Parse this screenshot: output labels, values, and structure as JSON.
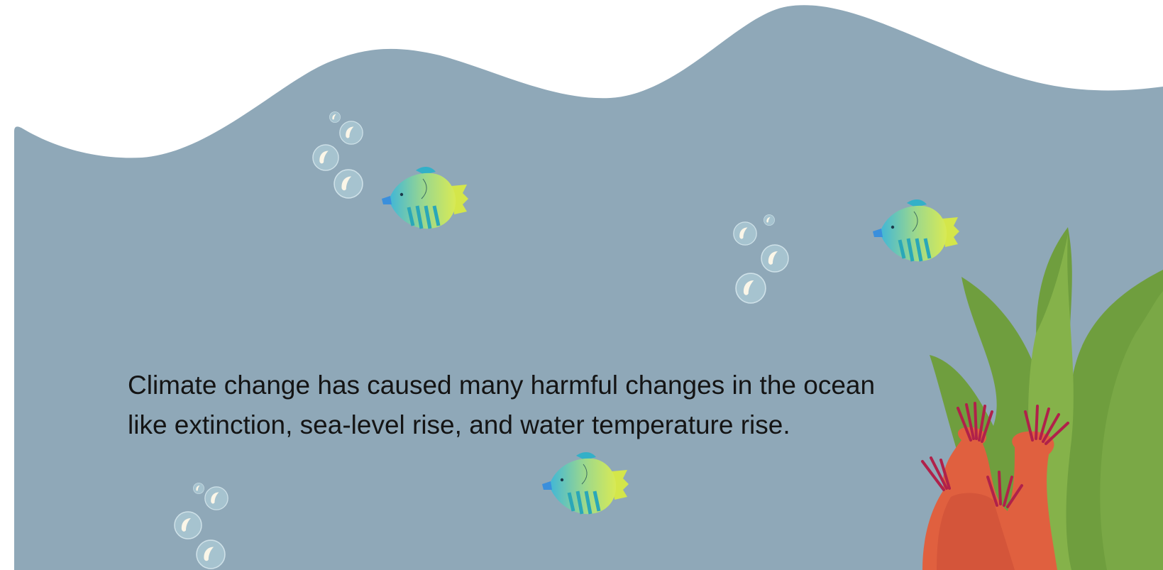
{
  "text": {
    "lines": [
      "Climate change has caused many harmful changes in the ocean",
      "like extinction, sea-level rise, and water temperature rise."
    ]
  }
}
